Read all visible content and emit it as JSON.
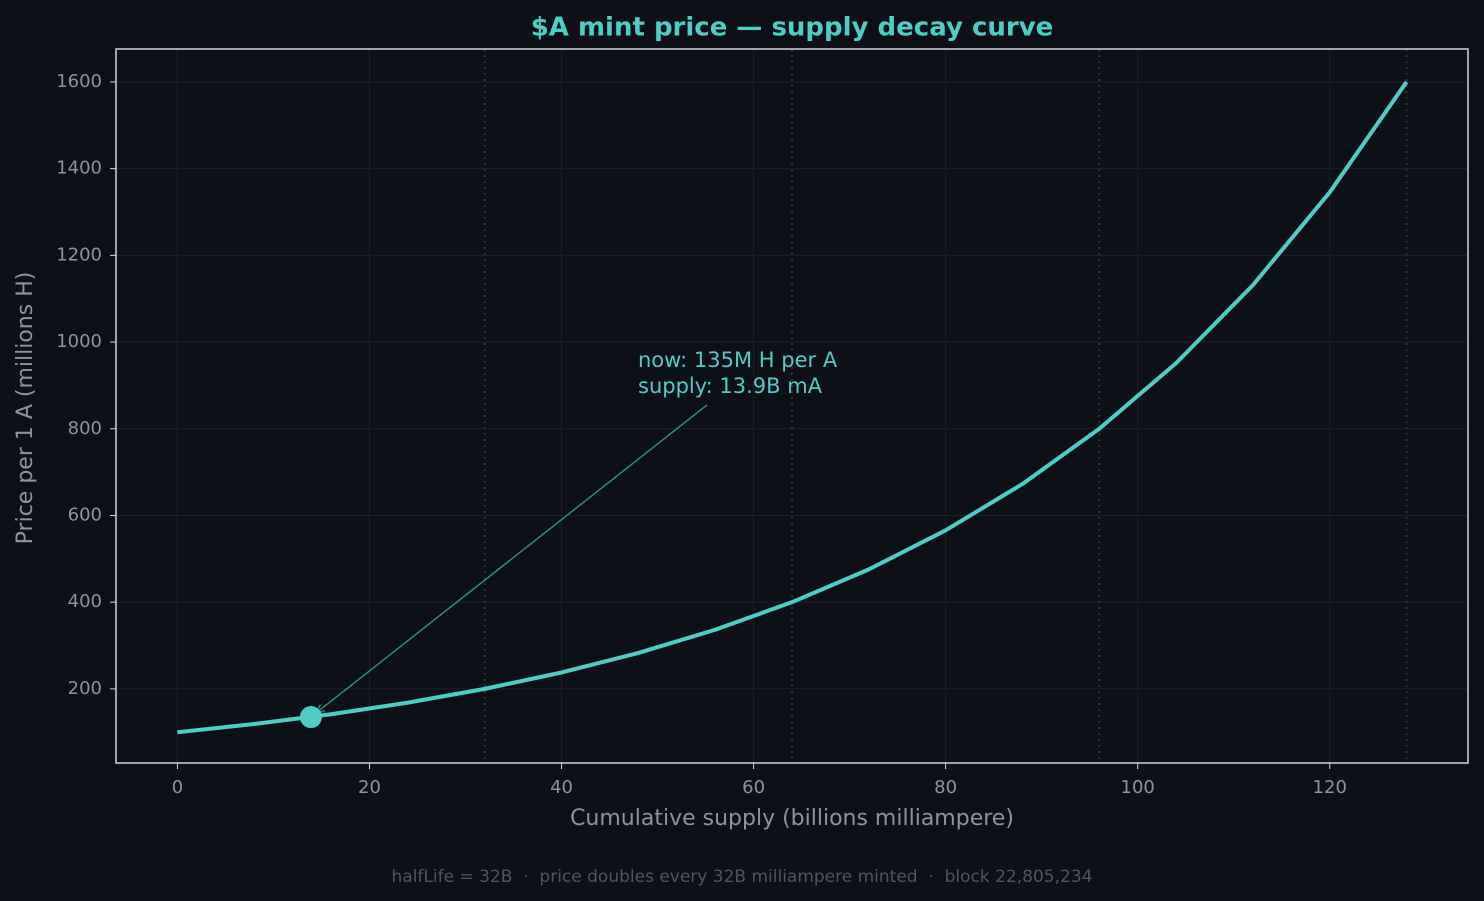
{
  "chart_data": {
    "type": "line",
    "title": "$A mint price — supply decay curve",
    "x_label": "Cumulative supply (billions milliampere)",
    "y_label": "Price per 1 A (millions H)",
    "x": [
      0,
      8,
      16,
      24,
      32,
      40,
      48,
      56,
      64,
      72,
      80,
      88,
      96,
      104,
      112,
      120,
      128
    ],
    "values": [
      100,
      118.9,
      141.4,
      168.2,
      200,
      237.8,
      282.8,
      336.4,
      400,
      475.7,
      565.7,
      672.7,
      800,
      951.4,
      1131.4,
      1345.4,
      1600
    ],
    "color": "#4ecdc4",
    "xlim": [
      -6.4,
      134.4
    ],
    "ylim": [
      29,
      1676
    ],
    "xticks": [
      0,
      20,
      40,
      60,
      80,
      100,
      120
    ],
    "yticks": [
      200,
      400,
      600,
      800,
      1000,
      1200,
      1400,
      1600
    ],
    "grid": true,
    "halflife_lines": [
      32,
      64,
      96,
      128
    ],
    "current_point": {
      "x": 13.9,
      "y": 135
    },
    "annotation": [
      "now: 135M H per A",
      "supply: 13.9B mA"
    ],
    "footer": "halfLife = 32B  ·  price doubles every 32B milliampere minted  ·  block 22,805,234"
  }
}
